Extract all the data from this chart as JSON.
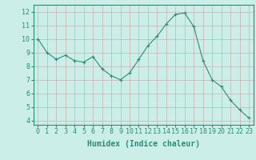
{
  "x": [
    0,
    1,
    2,
    3,
    4,
    5,
    6,
    7,
    8,
    9,
    10,
    11,
    12,
    13,
    14,
    15,
    16,
    17,
    18,
    19,
    20,
    21,
    22,
    23
  ],
  "y": [
    10.0,
    9.0,
    8.5,
    8.8,
    8.4,
    8.3,
    8.7,
    7.8,
    7.3,
    7.0,
    7.5,
    8.5,
    9.5,
    10.2,
    11.1,
    11.8,
    11.9,
    10.9,
    8.4,
    7.0,
    6.5,
    5.5,
    4.8,
    4.2
  ],
  "line_color": "#2e8b78",
  "marker": "+",
  "marker_size": 3,
  "marker_linewidth": 0.8,
  "bg_color": "#cceee8",
  "grid_color": "#c8b0b0",
  "xlabel": "Humidex (Indice chaleur)",
  "xlabel_fontsize": 7,
  "xlabel_fontweight": "bold",
  "xtick_labels": [
    "0",
    "1",
    "2",
    "3",
    "4",
    "5",
    "6",
    "7",
    "8",
    "9",
    "10",
    "11",
    "12",
    "13",
    "14",
    "15",
    "16",
    "17",
    "18",
    "19",
    "20",
    "21",
    "22",
    "23"
  ],
  "ytick_labels": [
    "4",
    "5",
    "6",
    "7",
    "8",
    "9",
    "10",
    "11",
    "12"
  ],
  "yticks": [
    4,
    5,
    6,
    7,
    8,
    9,
    10,
    11,
    12
  ],
  "ylim": [
    3.7,
    12.5
  ],
  "xlim": [
    -0.5,
    23.5
  ],
  "tick_fontsize": 6,
  "line_width": 0.8
}
